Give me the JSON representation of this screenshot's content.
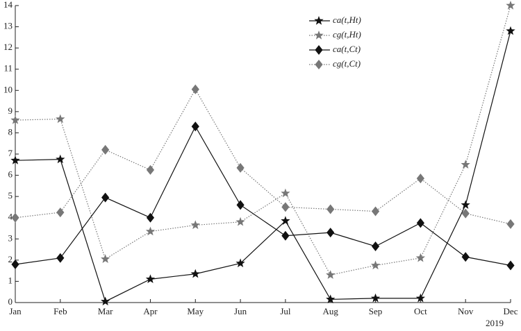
{
  "chart_data": {
    "type": "line",
    "categories": [
      "Jan",
      "Feb",
      "Mar",
      "Apr",
      "May",
      "Jun",
      "Jul",
      "Aug",
      "Sep",
      "Oct",
      "Nov",
      "Dec"
    ],
    "annotation": "2019",
    "ylim": [
      0,
      14
    ],
    "yticks": [
      0,
      1,
      2,
      3,
      4,
      5,
      6,
      7,
      8,
      9,
      10,
      11,
      12,
      13,
      14
    ],
    "legend": "top-right",
    "series": [
      {
        "name": "ca(t,Ht)",
        "color": "#111111",
        "marker": "star",
        "dash": "solid",
        "values": [
          6.7,
          6.75,
          0.05,
          1.1,
          1.35,
          1.85,
          3.85,
          0.15,
          0.2,
          0.2,
          4.6,
          12.8
        ]
      },
      {
        "name": "cg(t,Ht)",
        "color": "#777777",
        "marker": "star",
        "dash": "dotted",
        "values": [
          8.6,
          8.65,
          2.05,
          3.35,
          3.65,
          3.8,
          5.15,
          1.3,
          1.75,
          2.1,
          6.5,
          14
        ]
      },
      {
        "name": "ca(t,Ct)",
        "color": "#111111",
        "marker": "diamond",
        "dash": "solid",
        "values": [
          1.8,
          2.1,
          4.95,
          4.0,
          8.3,
          4.6,
          3.15,
          3.3,
          2.65,
          3.75,
          2.15,
          1.75
        ]
      },
      {
        "name": "cg(t,Ct)",
        "color": "#777777",
        "marker": "diamond",
        "dash": "dotted",
        "values": [
          4.0,
          4.25,
          7.2,
          6.25,
          10.05,
          6.35,
          4.5,
          4.4,
          4.3,
          5.85,
          4.2,
          3.7
        ]
      }
    ]
  }
}
